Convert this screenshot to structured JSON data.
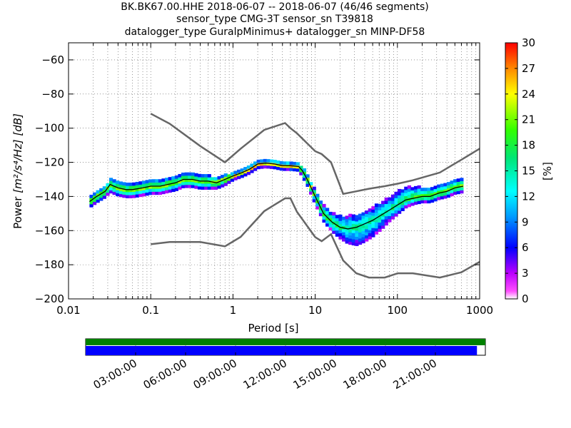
{
  "chart_data": {
    "type": "heatmap",
    "title_lines": [
      "BK.BK67.00.HHE   2018-06-07 -- 2018-06-07  (46/46 segments)",
      "sensor_type CMG-3T sensor_sn T39818",
      "datalogger_type GuralpMinimus+ datalogger_sn MINP-DF58"
    ],
    "xlabel": "Period [s]",
    "ylabel_text": "Power",
    "ylabel_math": "[m²/s⁴/Hz] [dB]",
    "x_scale": "log",
    "xlim": [
      0.01,
      1000
    ],
    "ylim": [
      -200,
      -50
    ],
    "x_ticks": [
      0.01,
      0.1,
      1,
      10,
      100,
      1000
    ],
    "x_tick_labels": [
      "0.01",
      "0.1",
      "1",
      "10",
      "100",
      "1000"
    ],
    "y_ticks": [
      -200,
      -180,
      -160,
      -140,
      -120,
      -100,
      -80,
      -60
    ],
    "y_tick_labels": [
      "−200",
      "−180",
      "−160",
      "−140",
      "−120",
      "−100",
      "−80",
      "−60"
    ],
    "grid": true,
    "colorbar": {
      "label": "[%]",
      "range": [
        0,
        30
      ],
      "ticks": [
        0,
        3,
        6,
        9,
        12,
        15,
        18,
        21,
        24,
        27,
        30
      ],
      "tick_labels": [
        "0",
        "3",
        "6",
        "9",
        "12",
        "15",
        "18",
        "21",
        "24",
        "27",
        "30"
      ],
      "colormap": "pqlx"
    },
    "noise_models": {
      "NHNM": {
        "color": "#666666",
        "periods": [
          0.1,
          0.17,
          0.4,
          0.8,
          1.24,
          2.4,
          4.3,
          5,
          6,
          10,
          12,
          15.6,
          21.9,
          31.6,
          45,
          70,
          101,
          154,
          328,
          600,
          1000
        ],
        "values": [
          -91.5,
          -97.4,
          -110.5,
          -120,
          -112,
          -101,
          -97,
          -100,
          -103,
          -113.5,
          -115.2,
          -120,
          -138.5,
          -137,
          -135.5,
          -134,
          -132.5,
          -130.5,
          -126,
          -118.5,
          -112
        ]
      },
      "NLNM": {
        "color": "#666666",
        "periods": [
          0.1,
          0.17,
          0.4,
          0.8,
          1.24,
          2.4,
          4.3,
          5,
          6,
          10,
          12,
          15.6,
          21.9,
          31.6,
          45,
          70,
          101,
          154,
          328,
          600,
          1000
        ],
        "values": [
          -168,
          -166.7,
          -166.7,
          -169.2,
          -163.7,
          -148.6,
          -141.1,
          -141.1,
          -149,
          -163.8,
          -166.2,
          -162.1,
          -177.5,
          -185,
          -187.5,
          -187.5,
          -185,
          -185,
          -187.5,
          -184.4,
          -178.3
        ]
      }
    },
    "mode_curve": {
      "name": "mode",
      "color": "#000000",
      "periods": [
        0.018,
        0.022,
        0.028,
        0.032,
        0.04,
        0.05,
        0.06,
        0.08,
        0.1,
        0.13,
        0.16,
        0.2,
        0.25,
        0.32,
        0.4,
        0.5,
        0.63,
        0.8,
        1,
        1.3,
        1.6,
        2,
        2.5,
        3.2,
        4,
        5,
        6.3,
        7,
        8,
        10,
        12.6,
        16,
        20,
        25,
        32,
        40,
        50,
        63,
        80,
        100,
        126,
        160,
        200,
        250,
        320,
        400,
        500,
        630
      ],
      "values": [
        -143,
        -140,
        -137,
        -133,
        -135,
        -136,
        -136,
        -135,
        -134,
        -134,
        -133,
        -132,
        -130,
        -130,
        -131,
        -131,
        -132,
        -130,
        -128,
        -126,
        -124,
        -121,
        -120.5,
        -121,
        -122,
        -122,
        -122.5,
        -125,
        -130,
        -140,
        -150,
        -155,
        -158,
        -159,
        -158,
        -156,
        -154,
        -151,
        -148,
        -145,
        -142,
        -141,
        -140,
        -140,
        -138,
        -137,
        -135,
        -134
      ],
      "band_upper_offsets": [
        3,
        3,
        3,
        4,
        4,
        4,
        4,
        4,
        4,
        4,
        4,
        4,
        4,
        4,
        4,
        4,
        3,
        3,
        2,
        2,
        2,
        2,
        2,
        2,
        2,
        2,
        2,
        3,
        3,
        4,
        5,
        6,
        7,
        8,
        8,
        8,
        8,
        8,
        8,
        8,
        8,
        7,
        6,
        5,
        5,
        5,
        5,
        5
      ],
      "band_lower_offsets": [
        3,
        3,
        3,
        4,
        4,
        4,
        4,
        4,
        4,
        4,
        4,
        4,
        4,
        4,
        4,
        4,
        3,
        3,
        2,
        2,
        2,
        2,
        2,
        2,
        2,
        2,
        2,
        3,
        3,
        4,
        4,
        5,
        6,
        8,
        10,
        10,
        9,
        8,
        6,
        5,
        4,
        3,
        3,
        3,
        3,
        3,
        3,
        3
      ]
    },
    "coverage": {
      "time_tick_labels": [
        "03:00:00",
        "06:00:00",
        "09:00:00",
        "12:00:00",
        "15:00:00",
        "18:00:00",
        "21:00:00"
      ],
      "time_tick_hours": [
        3,
        6,
        9,
        12,
        15,
        18,
        21
      ],
      "time_range_hours": [
        0,
        24
      ],
      "data_coverage_fraction": 1.0,
      "psd_coverage_fraction": 0.979,
      "data_color": "#008000",
      "psd_color": "#0000ff"
    }
  }
}
